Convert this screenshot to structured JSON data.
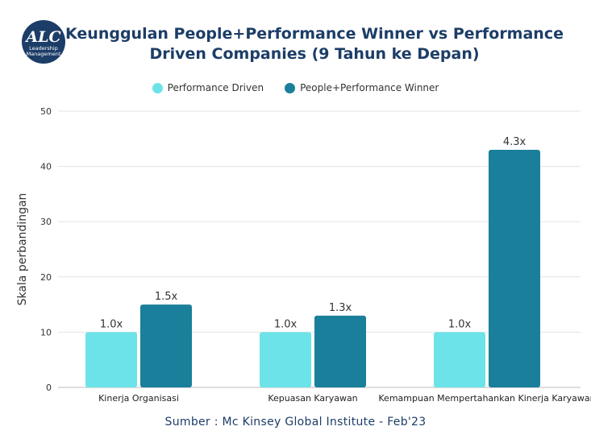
{
  "logo": {
    "mark": "ALC",
    "line1": "Leadership",
    "line2": "Management"
  },
  "source_note": "Sumber : Mc Kinsey Global Institute - Feb'23",
  "colors": {
    "performance_driven": "#6ce3e8",
    "people_performance": "#1a7f9a",
    "logo_bg": "#1c3d67"
  },
  "chart_data": {
    "type": "bar",
    "title": "Keunggulan People+Performance Winner vs Performance Driven Companies (9 Tahun ke Depan)",
    "ylabel": "Skala perbandingan",
    "xlabel": "",
    "ylim": [
      0,
      50
    ],
    "yticks": [
      0,
      10,
      20,
      30,
      40,
      50
    ],
    "grid": true,
    "legend_position": "top-center",
    "categories": [
      "Kinerja Organisasi",
      "Kepuasan Karyawan",
      "Kemampuan Mempertahankan Kinerja Karyawan"
    ],
    "series": [
      {
        "name": "Performance Driven",
        "values": [
          10,
          10,
          10
        ],
        "labels": [
          "1.0x",
          "1.0x",
          "1.0x"
        ]
      },
      {
        "name": "People+Performance Winner",
        "values": [
          15,
          13,
          43
        ],
        "labels": [
          "1.5x",
          "1.3x",
          "4.3x"
        ]
      }
    ]
  }
}
